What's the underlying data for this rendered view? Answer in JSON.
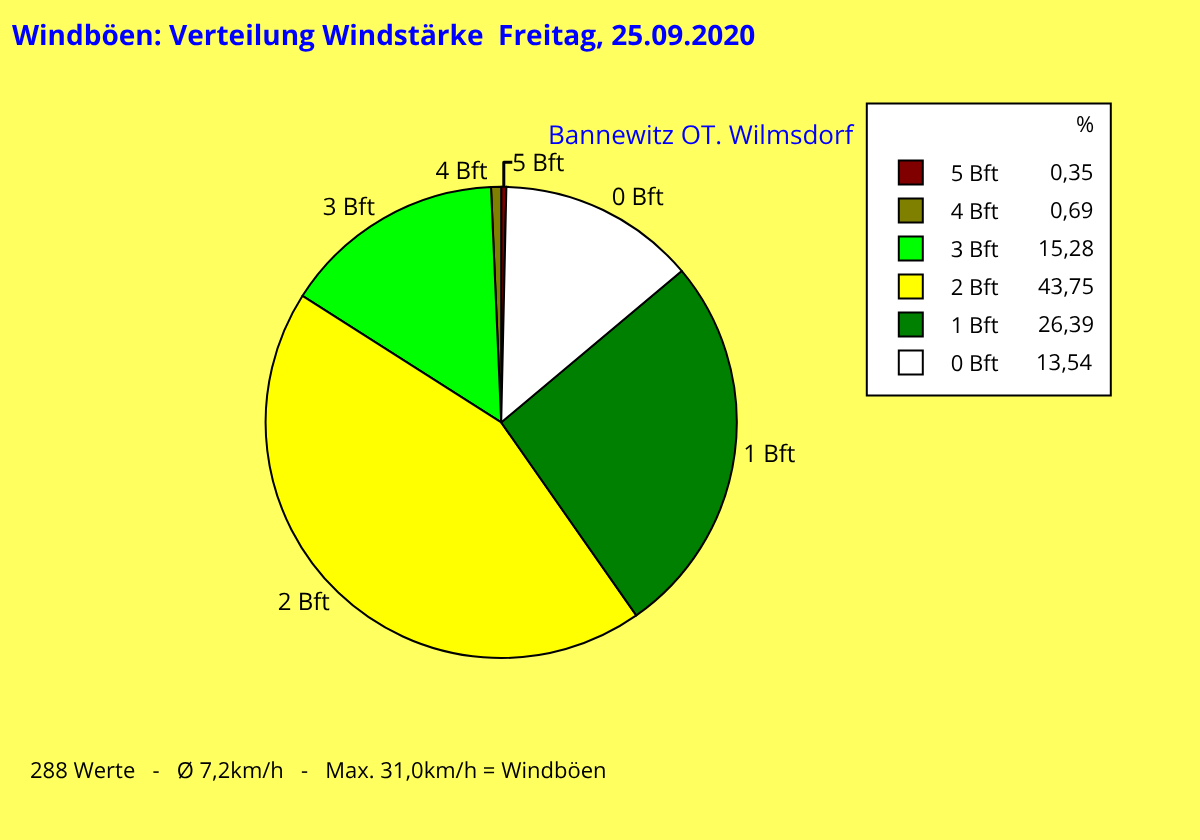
{
  "chart_data": {
    "type": "pie",
    "title": "Windböen: Verteilung Windstärke  Freitag, 25.09.2020",
    "subtitle": "Bannewitz OT. Wilmsdorf",
    "legend_title": "%",
    "categories": [
      "5 Bft",
      "4 Bft",
      "3 Bft",
      "2 Bft",
      "1 Bft",
      "0 Bft"
    ],
    "values": [
      0.35,
      0.69,
      15.28,
      43.75,
      26.39,
      13.54
    ],
    "value_labels": [
      "0,35",
      "0,69",
      "15,28",
      "43,75",
      "26,39",
      "13,54"
    ],
    "colors": [
      "#800000",
      "#808000",
      "#00ff00",
      "#ffff00",
      "#008000",
      "#ffffff"
    ],
    "legend": "top right",
    "annotations": [
      "288 Werte   -   Ø 7,2km/h   -   Max. 31,0km/h = Windböen"
    ]
  }
}
